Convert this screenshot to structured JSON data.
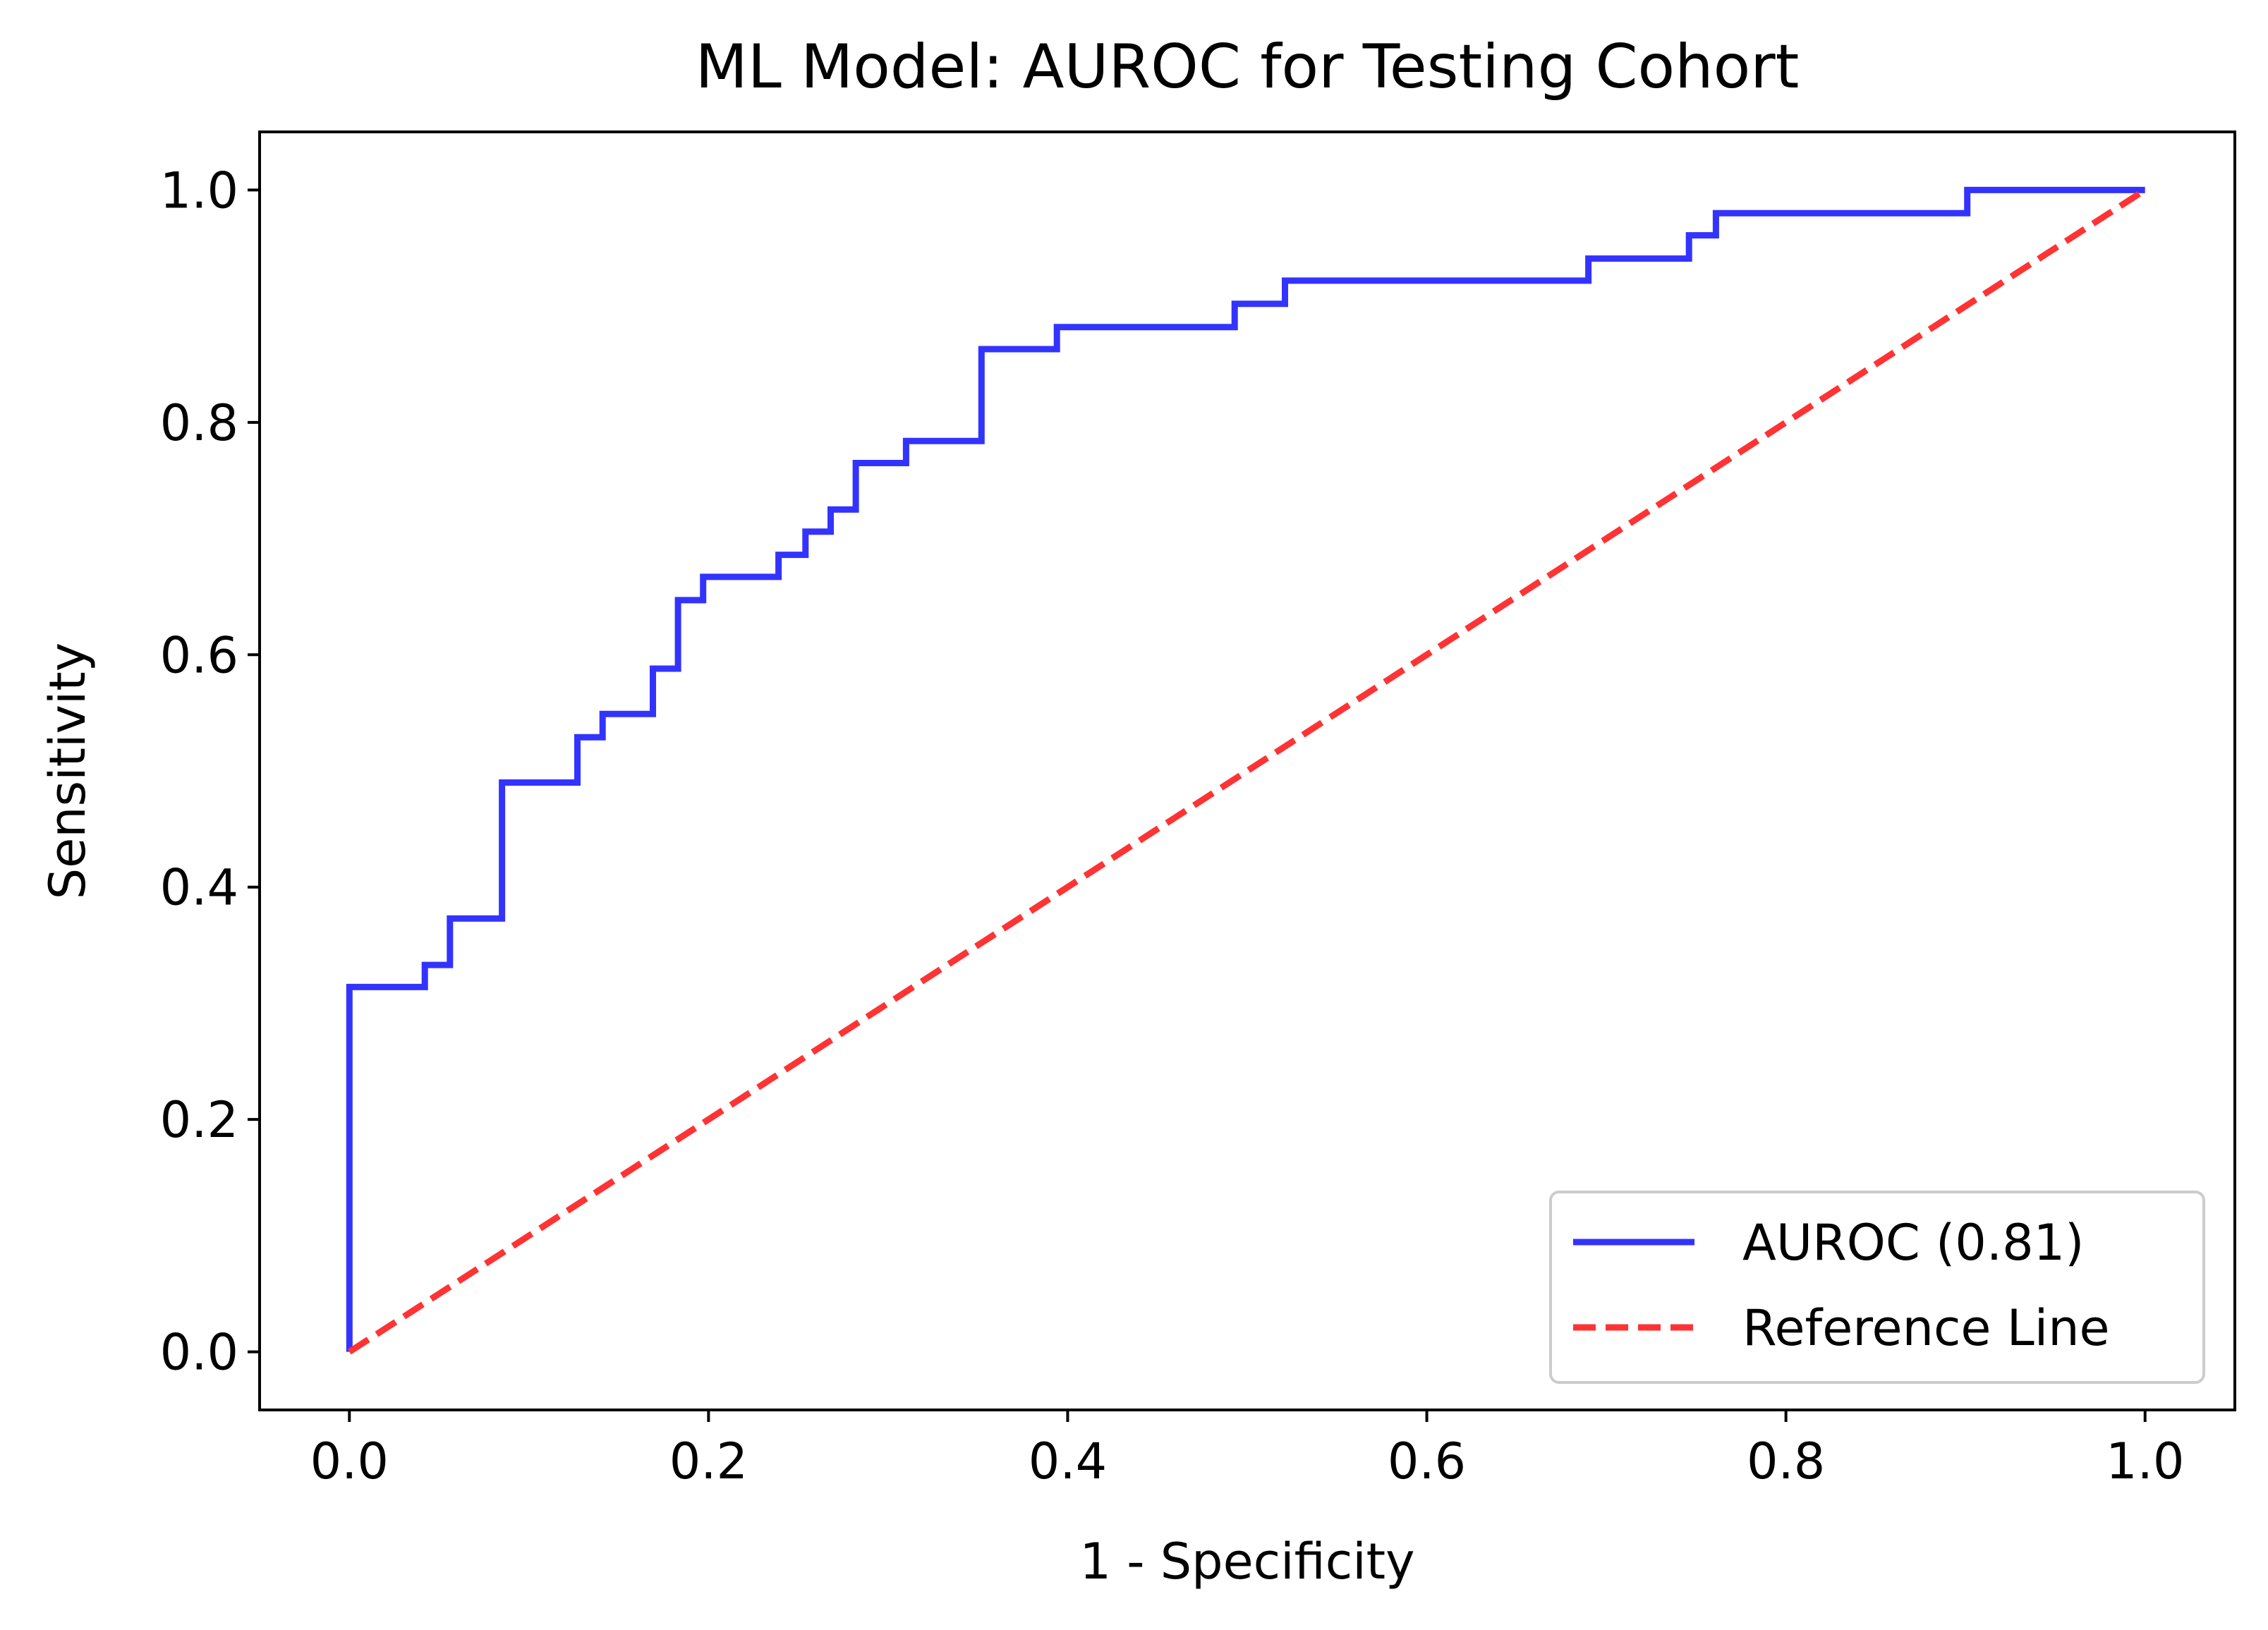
{
  "chart_data": {
    "type": "line",
    "title": "ML Model: AUROC for Testing Cohort",
    "xlabel": "1 - Specificity",
    "ylabel": "Sensitivity",
    "xlim": [
      -0.05,
      1.05
    ],
    "ylim": [
      -0.05,
      1.05
    ],
    "xticks": [
      0.0,
      0.2,
      0.4,
      0.6,
      0.8,
      1.0
    ],
    "xtick_labels": [
      "0.0",
      "0.2",
      "0.4",
      "0.6",
      "0.8",
      "1.0"
    ],
    "yticks": [
      0.0,
      0.2,
      0.4,
      0.6,
      0.8,
      1.0
    ],
    "ytick_labels": [
      "0.0",
      "0.2",
      "0.4",
      "0.6",
      "0.8",
      "1.0"
    ],
    "grid": false,
    "legend_position": "lower-right",
    "series": [
      {
        "name": "AUROC (0.81)",
        "style": "solid",
        "color": "#3333ff",
        "x": [
          0.0,
          0.0,
          0.042,
          0.042,
          0.056,
          0.056,
          0.085,
          0.085,
          0.127,
          0.127,
          0.141,
          0.141,
          0.169,
          0.169,
          0.183,
          0.183,
          0.197,
          0.197,
          0.239,
          0.239,
          0.254,
          0.254,
          0.268,
          0.268,
          0.282,
          0.282,
          0.31,
          0.31,
          0.352,
          0.352,
          0.394,
          0.394,
          0.493,
          0.493,
          0.521,
          0.521,
          0.69,
          0.69,
          0.746,
          0.746,
          0.761,
          0.761,
          0.901,
          0.901,
          1.0
        ],
        "y": [
          0.0,
          0.314,
          0.314,
          0.333,
          0.333,
          0.373,
          0.373,
          0.49,
          0.49,
          0.529,
          0.529,
          0.549,
          0.549,
          0.588,
          0.588,
          0.647,
          0.647,
          0.667,
          0.667,
          0.686,
          0.686,
          0.706,
          0.706,
          0.725,
          0.725,
          0.765,
          0.765,
          0.784,
          0.784,
          0.863,
          0.863,
          0.882,
          0.882,
          0.902,
          0.902,
          0.922,
          0.922,
          0.941,
          0.941,
          0.961,
          0.961,
          0.98,
          0.98,
          1.0,
          1.0
        ]
      },
      {
        "name": "Reference Line",
        "style": "dashed",
        "color": "#ff3333",
        "x": [
          0.0,
          1.0
        ],
        "y": [
          0.0,
          1.0
        ]
      }
    ]
  }
}
